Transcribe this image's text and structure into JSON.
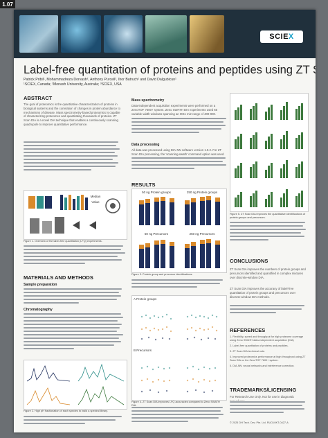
{
  "photo_label": "1.07",
  "brand": {
    "name": "SCIEX",
    "accent": "#1aa0c8"
  },
  "title": "Label-free quantitation of proteins and peptides using ZT Scan DIA",
  "authors": "Patrick Pribil¹, Mohammadreza Dorvash², Anthony Purcell², Ihor Batruch¹ and David Dalgubicun¹",
  "affiliations": "¹SCIEX, Canada; ²Monash University, Australia; ³SCIEX, USA",
  "sections": {
    "abstract": "ABSTRACT",
    "materials": "MATERIALS AND METHODS",
    "results": "RESULTS",
    "conclusions": "CONCLUSIONS",
    "references": "REFERENCES",
    "trademarks": "TRADEMARKS/LICENSING"
  },
  "subheads": {
    "sample_prep": "Sample preparation",
    "chromatography": "Chromatography",
    "mass_spec": "Mass spectrometry",
    "data_processing": "Data processing"
  },
  "abstract_text": "The goal of proteomics is the quantitative characterization of proteins in biological systems and the correlation of changes in protein abundance to mechanisms of disease. Mass spectrometry-based proteomics is capable of characterizing proteomes and quantitating thousands of proteins. ZT Scan DIA is a novel DIA technique that enables a continuously scanning quadrupole to improve quantitative performance.",
  "mass_spec_text": "Data-independent acquisition experiments were performed on a ZenoTOF 7600+ system. Zeno SWATH DIA experiments used 65 variable-width windows spanning an MS1 m/z range of 400-900.",
  "data_processing_text": "All data was processed using DIA-NN software version 1.9.2. For ZT Scan DIA processing, the 'scanning-swath' command option was used.",
  "fig1_labels": {
    "median": "Median",
    "value": "Value"
  },
  "fig3": {
    "protein_groups_50": "50 ng Protein groups",
    "protein_groups_250": "250 ng Protein groups",
    "precursors_50": "50 ng Precursors",
    "precursors_250": "250 ng Precursors"
  },
  "fig4": {
    "a": "A  Protein groups",
    "b": "B  Precursors"
  },
  "captions": {
    "fig1": "Figure 1. Overview of the label-free quantitation (LFQ) experiments.",
    "fig2": "Figure 2. High pH fractionation of each species to build a spectral library.",
    "fig3": "Figure 3. Protein group and precursor identifications.",
    "fig4": "Figure 4. ZT Scan DIA improves LFQ accuracies compared to Zeno SWATH DIA.",
    "fig5": "Figure 5. ZT Scan DIA improves the quantitative identifications of protein groups and precursors."
  },
  "conclusions_text": [
    "ZT Scan DIA improves the numbers of protein groups and precursors identified and quantified in complex mixtures over discrete-window DIA.",
    "ZT Scan DIA improves the accuracy of label-free quantitation of protein groups and precursors over discrete-window DIA methods."
  ],
  "references": [
    "1. Flexibility, speed and throughput for high proteome coverage using Zeno SWATH data-independent acquisition (DIA) technology.",
    "2. Label-free quantitation of proteins and peptides.",
    "3. ZT Scan DIA technical note.",
    "4. Improved proteomics performance at high throughput using ZT Scan DIA on the ZenoTOF 7600+ system.",
    "5. DIA-NN: neural networks and interference correction."
  ],
  "trademarks_text": "For Research Use Only. Not for use in diagnostic procedures.",
  "footer": "© 2025 DH Tech. Dev. Pte. Ltd.  RUO-MKT-0427-A",
  "colors": {
    "navy": "#1f2f5c",
    "orange": "#d98a2b",
    "teal": "#2f8f8a",
    "green": "#3e7a3e"
  }
}
